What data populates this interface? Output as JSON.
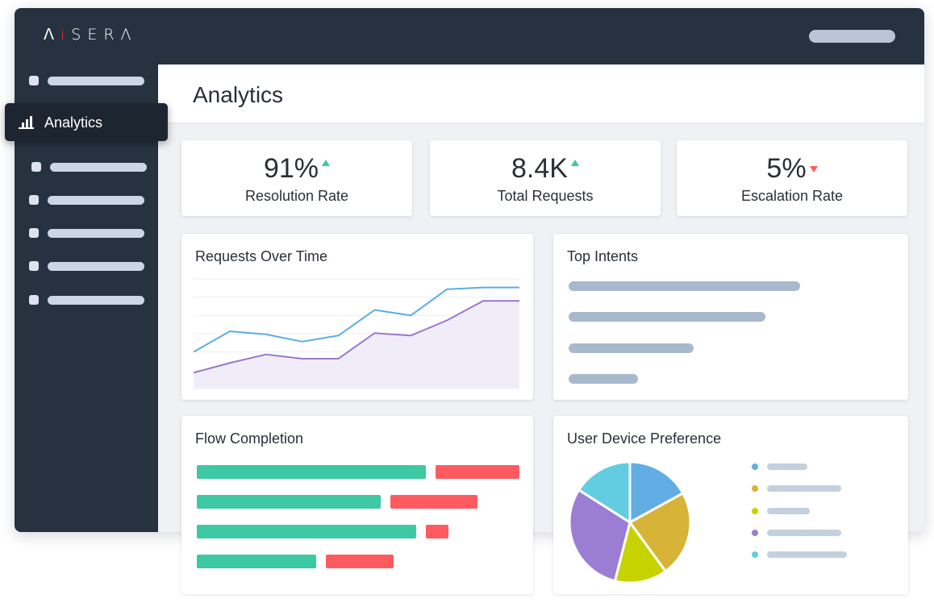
{
  "brand": {
    "logo_before": "ᐱ",
    "logo_accent": "i",
    "logo_after": "SERΛ"
  },
  "header": {
    "title": "Analytics"
  },
  "sidebar": {
    "active_label": "Analytics",
    "active_icon": "bar-chart-icon"
  },
  "kpis": [
    {
      "value": "91%",
      "label": "Resolution Rate",
      "trend": "up"
    },
    {
      "value": "8.4K",
      "label": "Total Requests",
      "trend": "up"
    },
    {
      "value": "5%",
      "label": "Escalation Rate",
      "trend": "down"
    }
  ],
  "cards": {
    "requests_title": "Requests Over Time",
    "intents_title": "Top Intents",
    "flow_title": "Flow Completion",
    "device_title": "User Device Preference"
  },
  "colors": {
    "sidebar": "#273240",
    "accent_up": "#3cc9a3",
    "accent_down": "#ff5a5f",
    "line_blue": "#5aaee3",
    "line_purple": "#9a78cc"
  },
  "chart_data": [
    {
      "type": "line",
      "title": "Requests Over Time",
      "x": [
        1,
        2,
        3,
        4,
        5,
        6,
        7,
        8,
        9,
        10
      ],
      "series": [
        {
          "values": [
            6.0,
            9.4,
            8.9,
            7.7,
            8.7,
            12.9,
            12.0,
            16.3,
            16.6,
            16.6
          ]
        },
        {
          "values": [
            2.6,
            4.2,
            5.6,
            4.9,
            4.9,
            9.1,
            8.7,
            11.2,
            14.4,
            14.4
          ]
        }
      ],
      "ylim": [
        0,
        18
      ],
      "grid": true
    },
    {
      "type": "bar",
      "title": "Top Intents",
      "values": [
        100,
        85,
        54,
        30
      ]
    },
    {
      "type": "bar",
      "title": "Flow Completion",
      "series": [
        {
          "values": [
            71,
            57,
            68,
            37
          ]
        },
        {
          "values": [
            26,
            27,
            7,
            21
          ]
        }
      ]
    },
    {
      "type": "pie",
      "title": "User Device Preference",
      "values": [
        17,
        23,
        14,
        30,
        16
      ],
      "colors": [
        "#62ade3",
        "#d7b437",
        "#c6d300",
        "#9b7dd4",
        "#62cde0"
      ]
    }
  ]
}
